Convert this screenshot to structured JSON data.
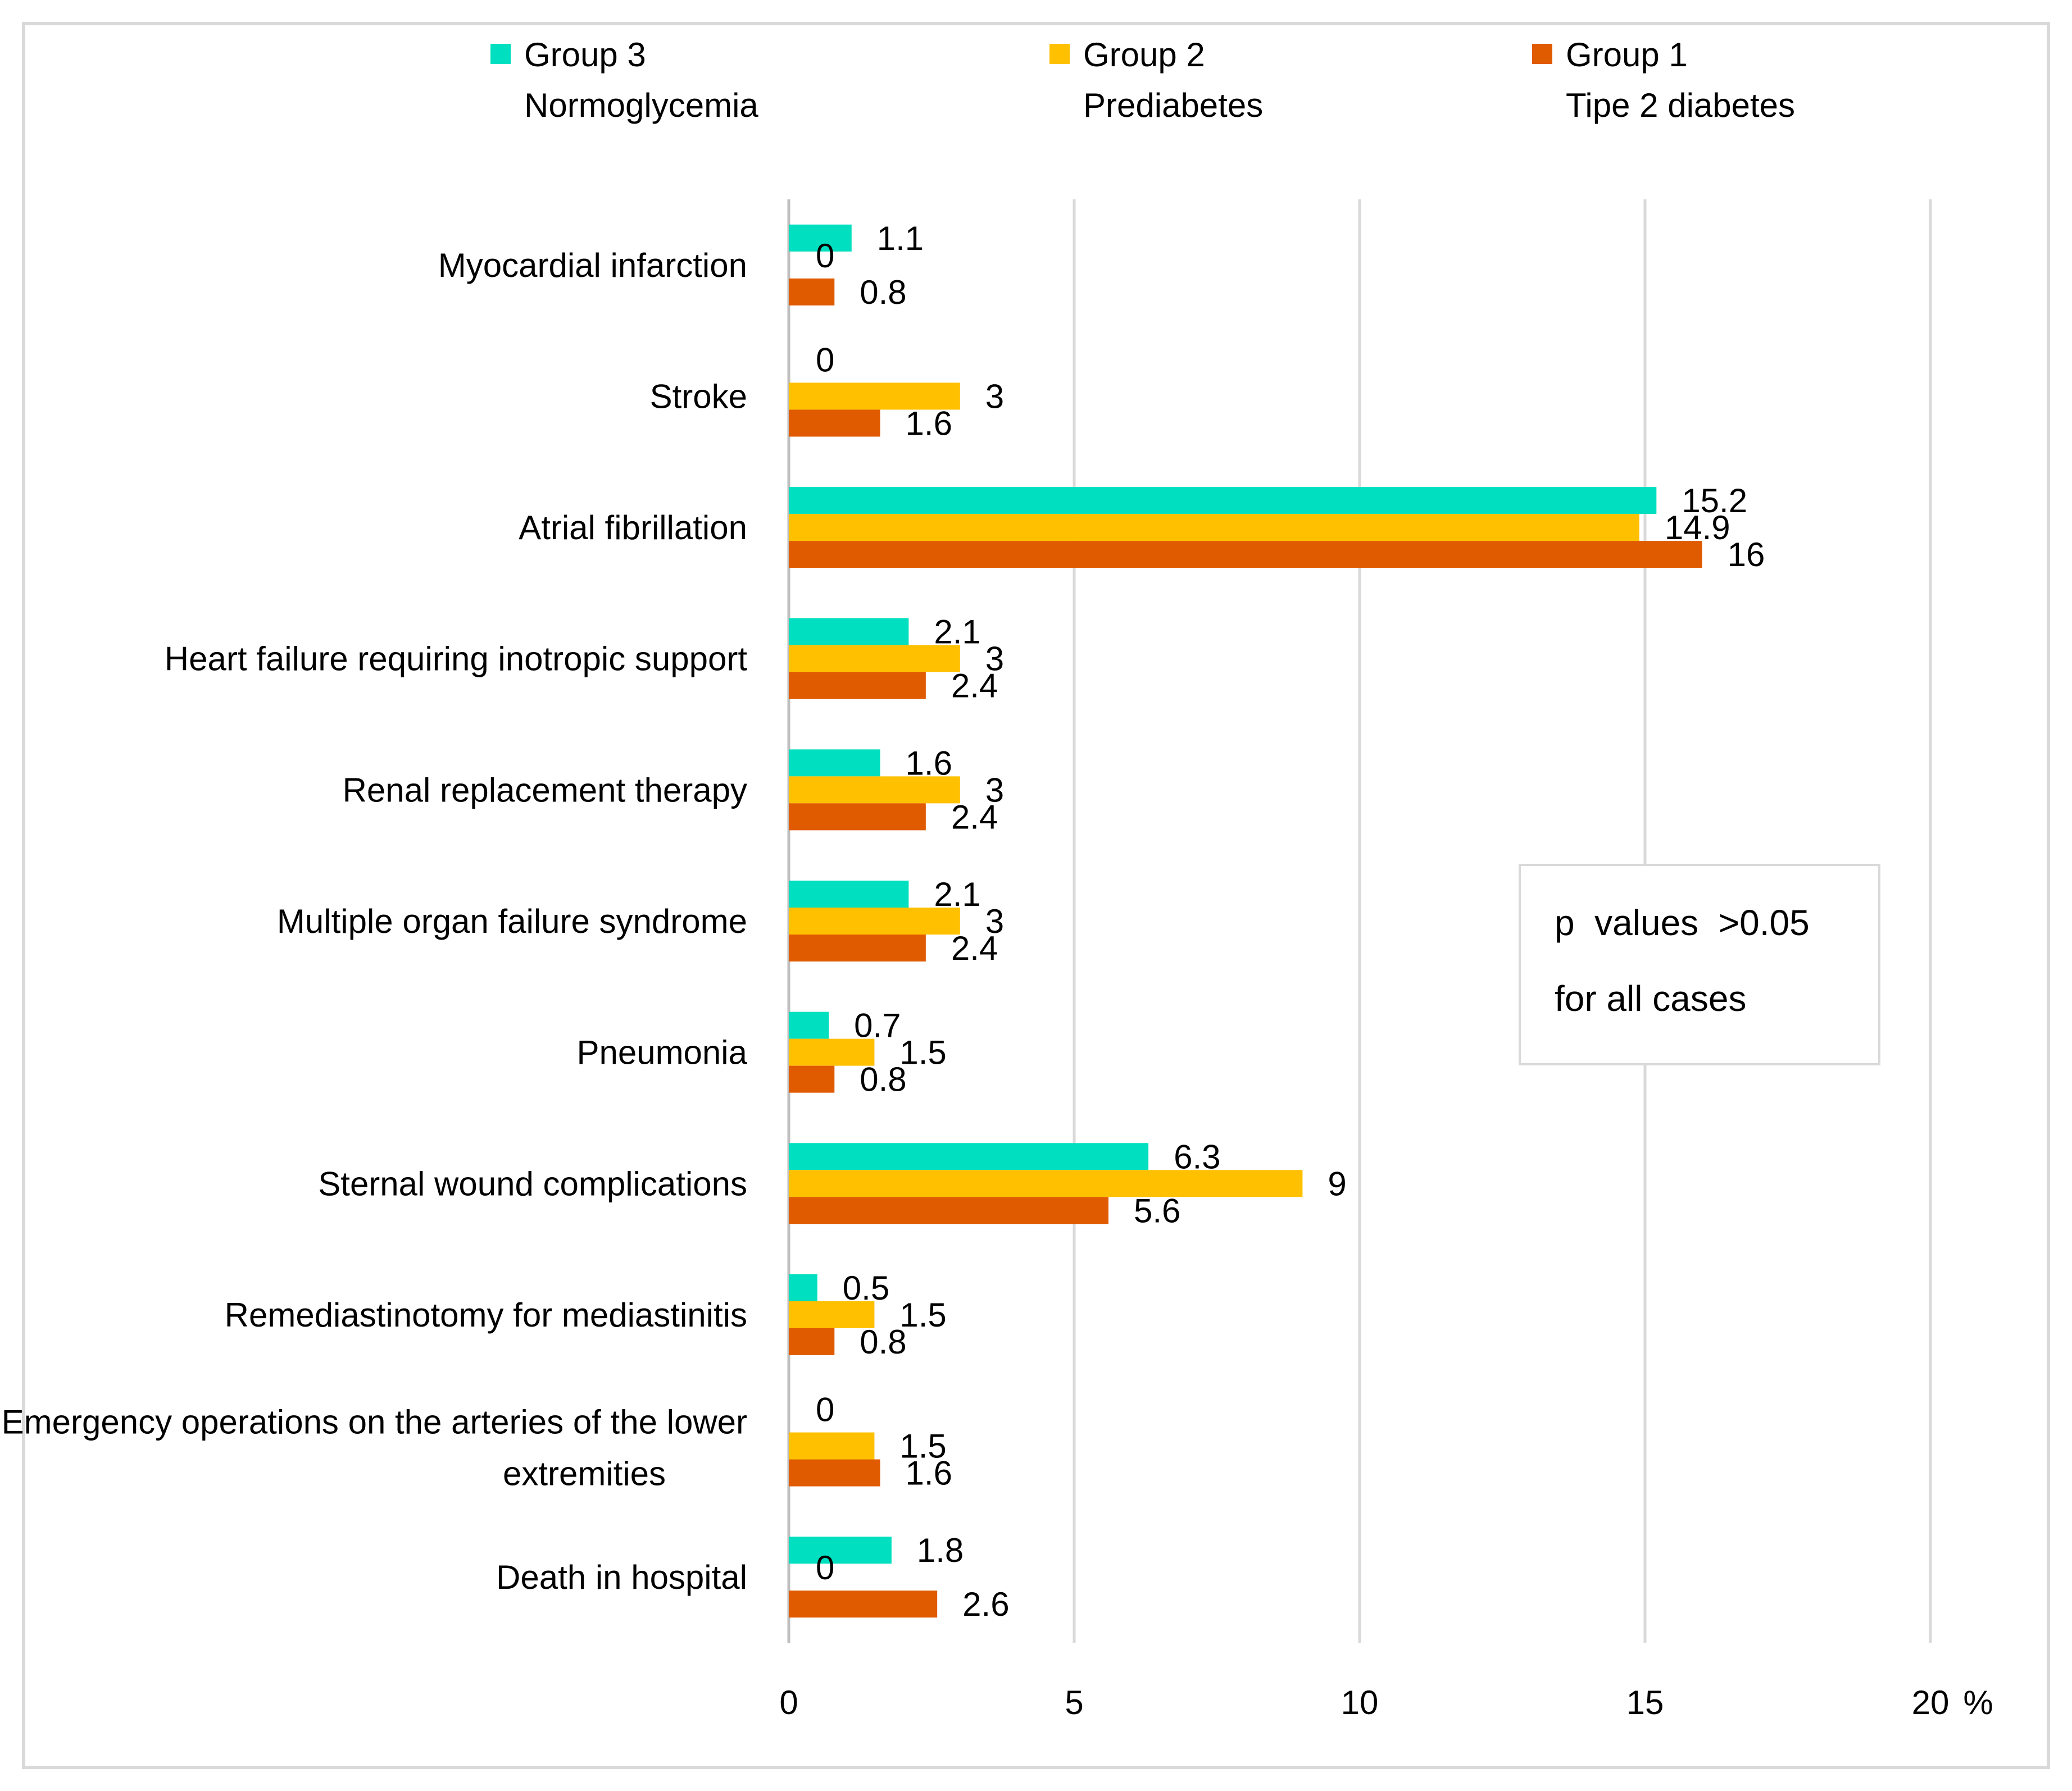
{
  "chart_data": {
    "type": "bar",
    "orientation": "horizontal",
    "categories": [
      "Myocardial infarction",
      "Stroke",
      "Atrial fibrillation",
      "Heart failure requiring inotropic support",
      "Renal replacement therapy",
      "Multiple organ failure syndrome",
      "Pneumonia",
      "Sternal wound complications",
      "Remediastinotomy for mediastinitis",
      "Emergency operations on the arteries of the lower extremities",
      "Death in hospital"
    ],
    "series": [
      {
        "name": "Group 3",
        "subtitle": "Normoglycemia",
        "color": "#00dfbf",
        "values": [
          1.1,
          0,
          15.2,
          2.1,
          1.6,
          2.1,
          0.7,
          6.3,
          0.5,
          0,
          1.8
        ]
      },
      {
        "name": "Group 2",
        "subtitle": "Prediabetes",
        "color": "#ffc000",
        "values": [
          0,
          3,
          14.9,
          3,
          3,
          3,
          1.5,
          9,
          1.5,
          1.5,
          0
        ]
      },
      {
        "name": "Group 1",
        "subtitle": "Tipe 2 diabetes",
        "color": "#e05a00",
        "values": [
          0.8,
          1.6,
          16,
          2.4,
          2.4,
          2.4,
          0.8,
          5.6,
          0.8,
          1.6,
          2.6
        ]
      }
    ],
    "xlim": [
      0,
      20
    ],
    "xticks": [
      "0",
      "5",
      "10",
      "15",
      "20"
    ],
    "x_unit": "%",
    "grid": true,
    "legend": "top",
    "annotation_lines": [
      "p  values  >0.05",
      "for all cases"
    ]
  }
}
